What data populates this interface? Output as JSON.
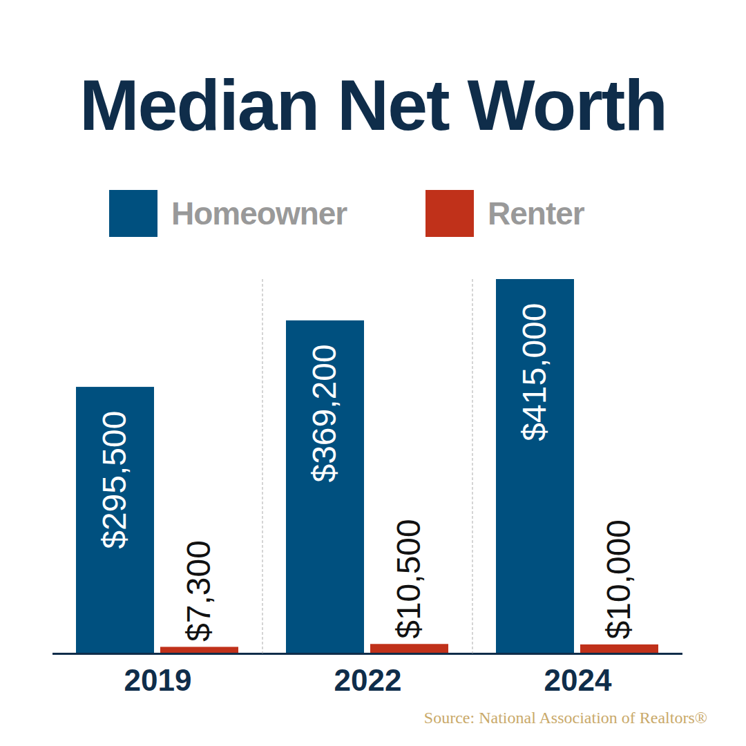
{
  "chart_data": {
    "type": "bar",
    "title": "Median Net Worth",
    "categories": [
      "2019",
      "2022",
      "2024"
    ],
    "series": [
      {
        "name": "Homeowner",
        "color": "#00507f",
        "values": [
          295500,
          369200,
          415000
        ],
        "value_labels": [
          "$295,500",
          "$369,200",
          "$415,000"
        ]
      },
      {
        "name": "Renter",
        "color": "#c0311a",
        "values": [
          7300,
          10500,
          10000
        ],
        "value_labels": [
          "$7,300",
          "$10,500",
          "$10,000"
        ]
      }
    ],
    "ylim": [
      0,
      415000
    ],
    "data_labels": true,
    "tick_labels": "x",
    "grid": false,
    "legend": "top",
    "caption": "Source: National Association of Realtors®"
  }
}
